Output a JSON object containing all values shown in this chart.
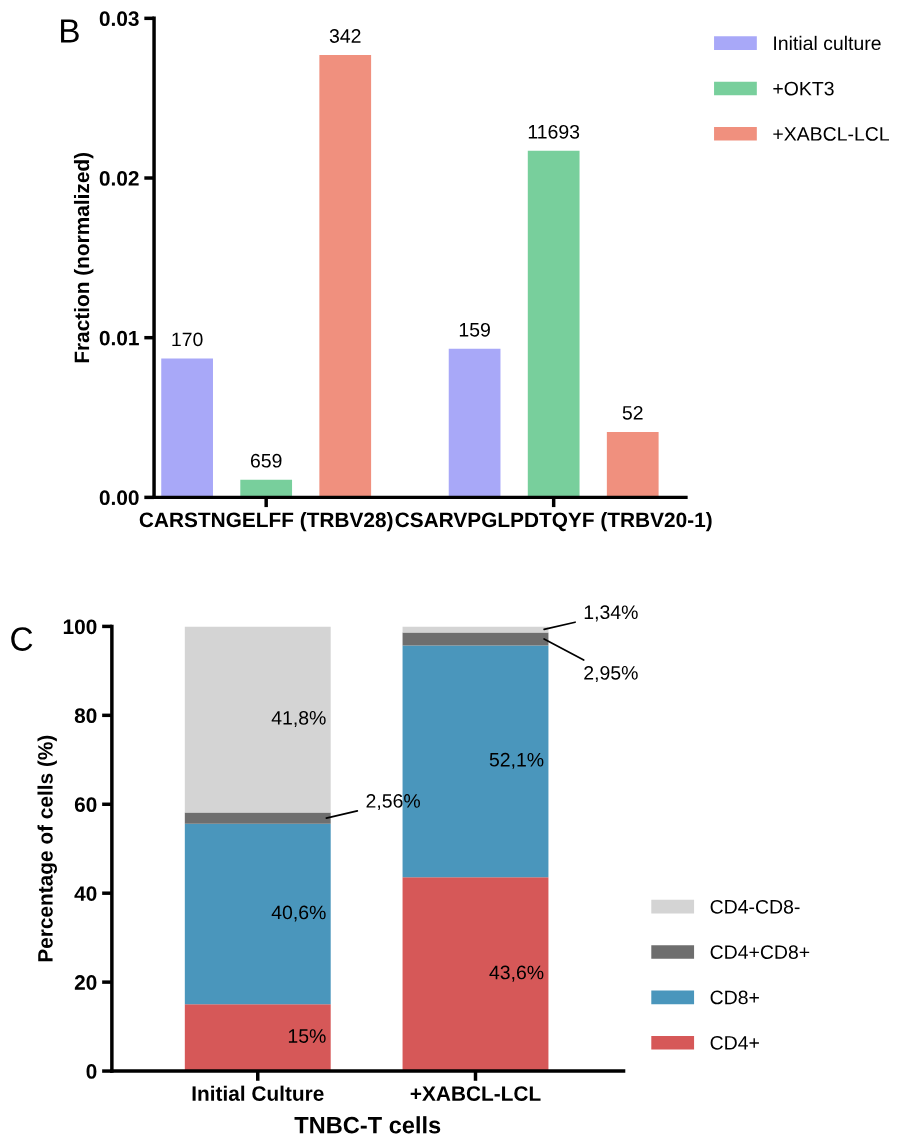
{
  "chart_data": [
    {
      "type": "bar",
      "ylabel": "Fraction (normalized)",
      "annotations": [
        "B",
        "170",
        "659",
        "342",
        "159",
        "11693",
        "52"
      ],
      "categories": [
        "CARSTNGELFF (TRBV28)",
        "CSARVPGLPDTQYF (TRBV20-1)"
      ],
      "series": [
        {
          "name": "Initial culture",
          "color": "#a8a8f8",
          "values": [
            0.0087,
            0.0093
          ]
        },
        {
          "name": "+OKT3",
          "color": "#78cf9c",
          "values": [
            0.0011,
            0.0217
          ]
        },
        {
          "name": "+XABCL-LCL",
          "color": "#f0907e",
          "values": [
            0.0277,
            0.0041
          ]
        }
      ],
      "ylim": [
        0,
        0.03
      ],
      "yticks": [
        {
          "value": 0,
          "label": "0.00"
        },
        0.01,
        0.02,
        0.03
      ],
      "grid": false,
      "legend": "top right"
    },
    {
      "type": "bar",
      "stacked": true,
      "xlabel": "TNBC-T cells",
      "ylabel": "Percentage of cells (%)",
      "annotations": [
        "C"
      ],
      "categories": [
        "Initial Culture",
        "+XABCL-LCL"
      ],
      "series": [
        {
          "name": "CD4+",
          "color": "#d65858",
          "values": [
            15,
            43.6
          ],
          "value_labels": [
            "15%",
            "43,6%"
          ]
        },
        {
          "name": "CD8+",
          "color": "#4a96bc",
          "values": [
            40.6,
            52.1
          ],
          "value_labels": [
            "40,6%",
            "52,1%"
          ]
        },
        {
          "name": "CD4+CD8+",
          "color": "#6e6e6e",
          "values": [
            2.56,
            2.95
          ],
          "value_labels": [
            "2,56%",
            "2,95%"
          ]
        },
        {
          "name": "CD4-CD8-",
          "color": "#d4d4d4",
          "values": [
            41.8,
            1.34
          ],
          "value_labels": [
            "41,8%",
            "1,34%"
          ]
        }
      ],
      "ylim": [
        0,
        100
      ],
      "yticks": [
        0,
        20,
        40,
        60,
        80,
        100
      ],
      "grid": false,
      "legend": "bottom right"
    }
  ]
}
